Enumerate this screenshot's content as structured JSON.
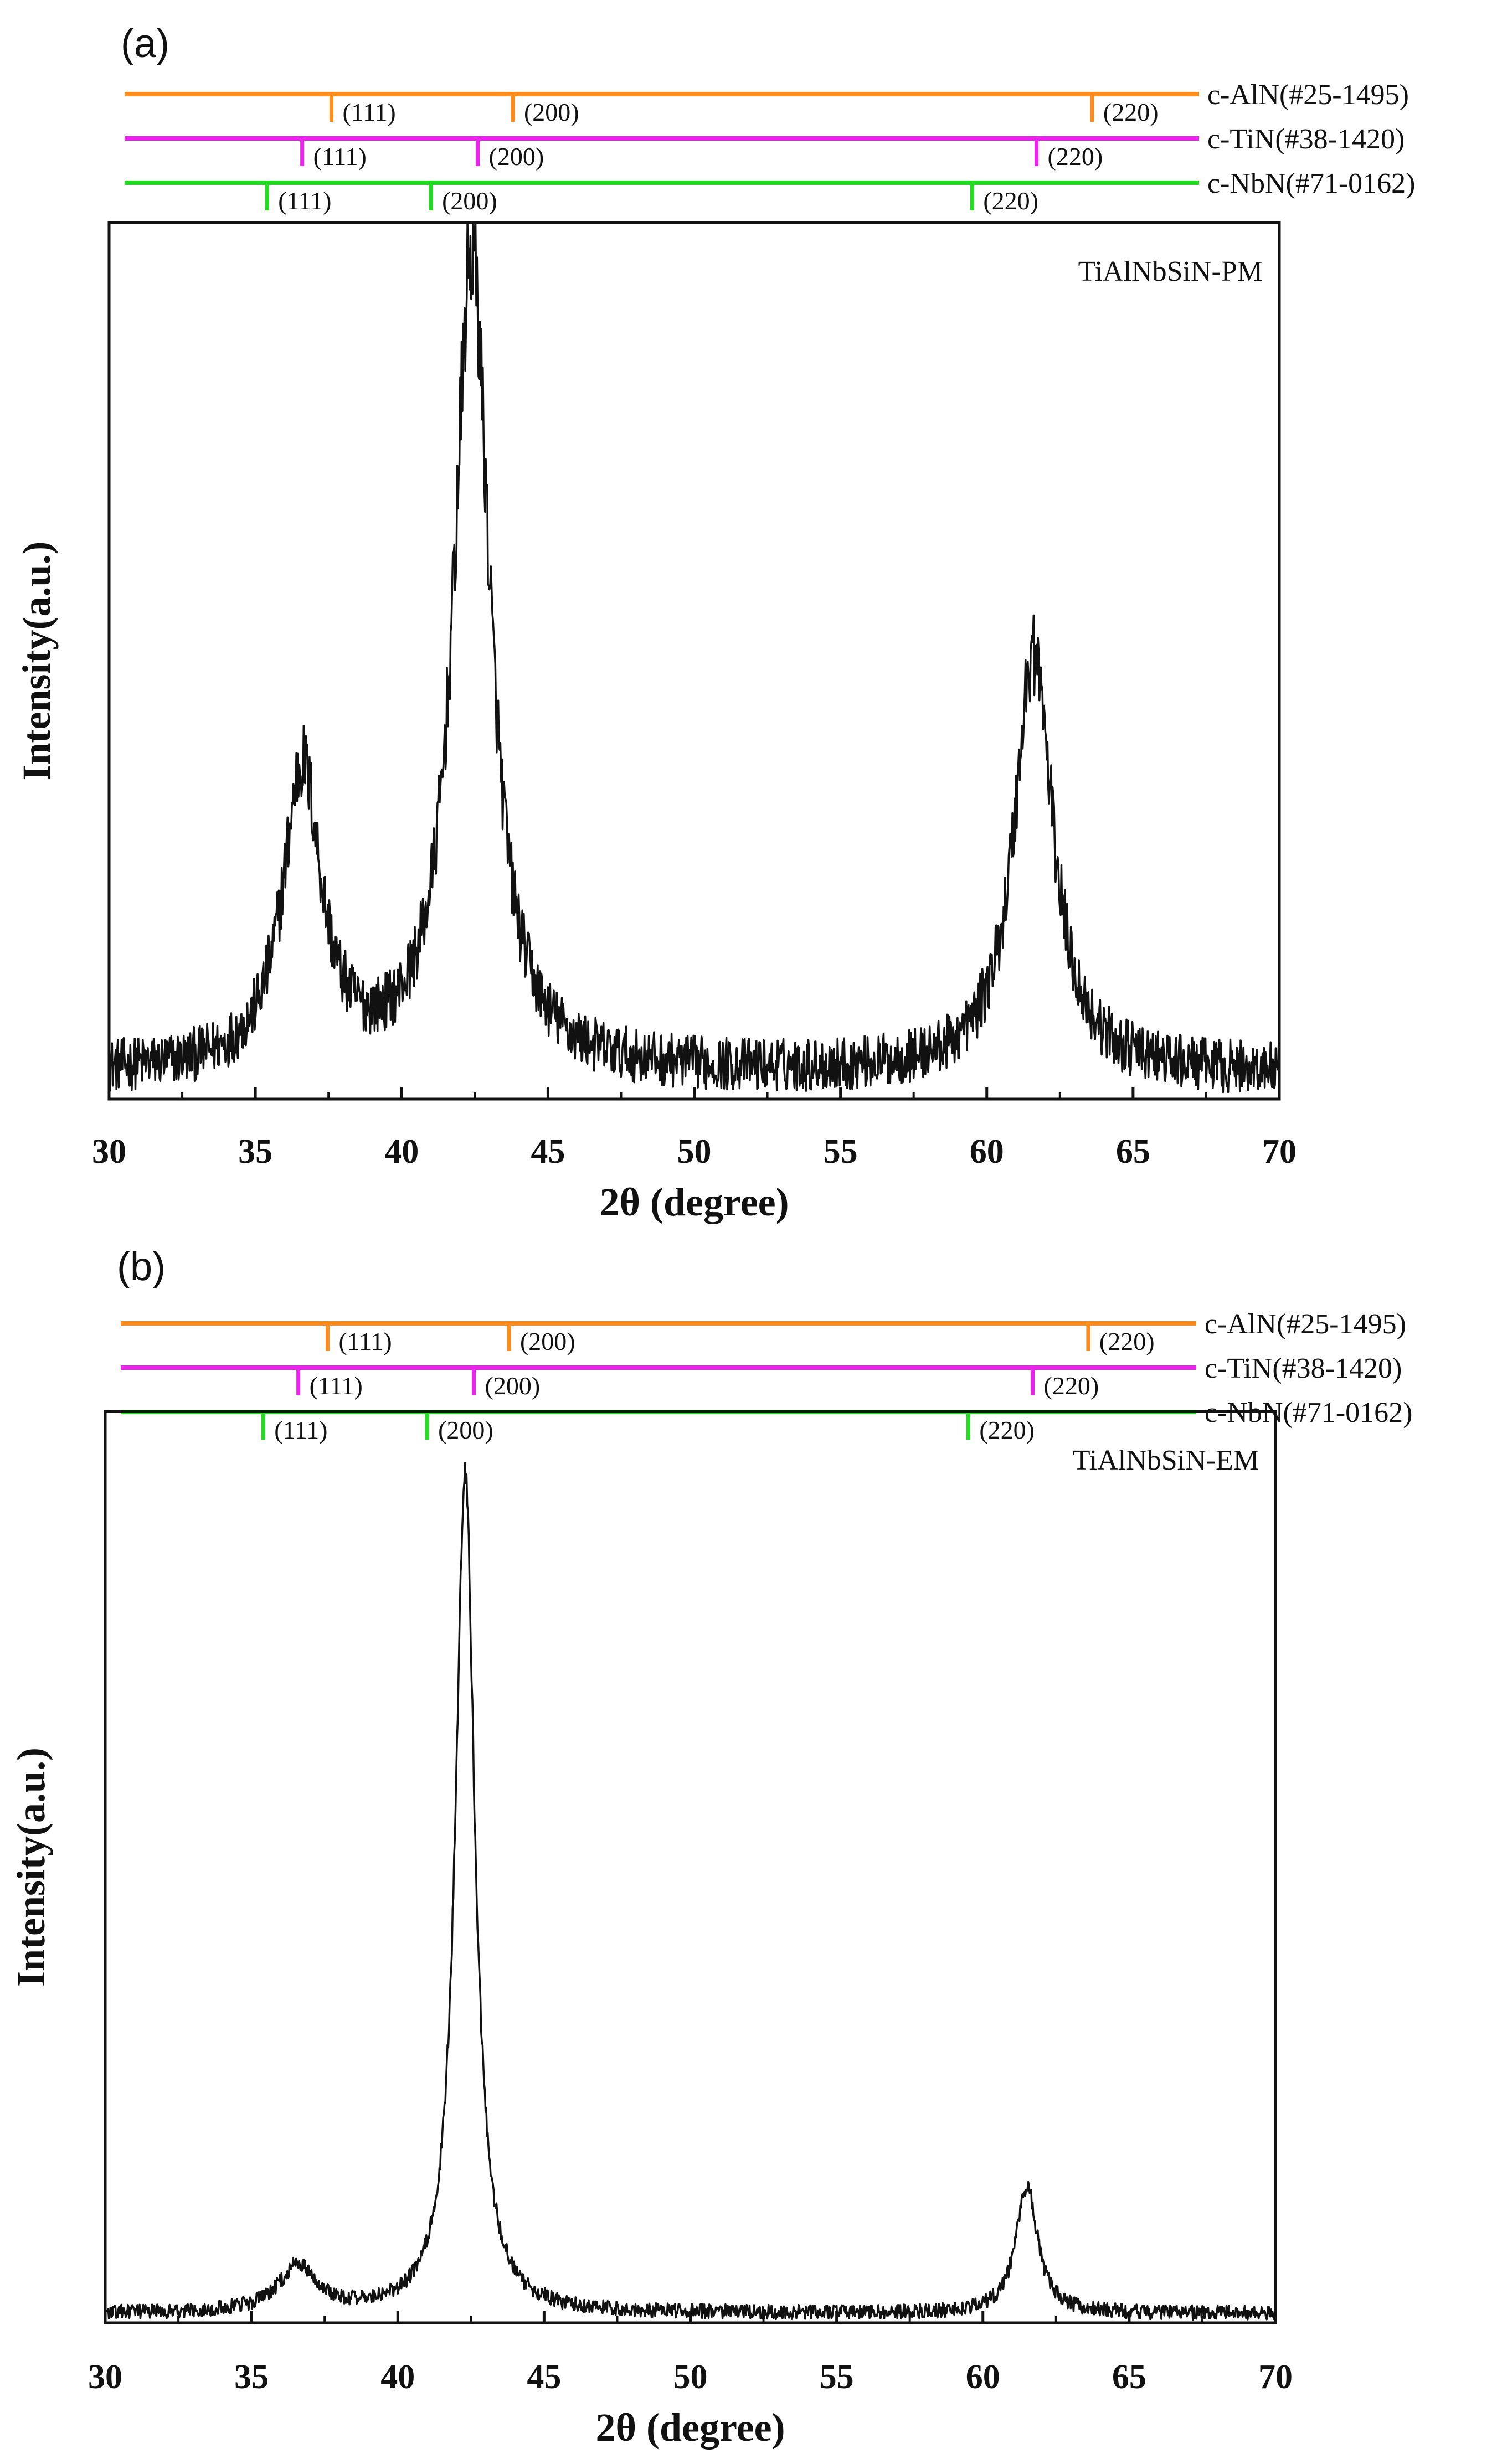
{
  "chart_data": [
    {
      "type": "line",
      "panel_label": "(a)",
      "sample_label": "TiAlNbSiN-PM",
      "xlabel": "2θ (degree)",
      "ylabel": "Intensity(a.u.)",
      "xlim": [
        30,
        70
      ],
      "ylim": [
        0,
        100
      ],
      "xticks": [
        "30",
        "35",
        "40",
        "45",
        "50",
        "55",
        "60",
        "65",
        "70"
      ],
      "grid": false,
      "reference_patterns": [
        {
          "name": "c-AlN(#25-1495)",
          "color": "#ff8c1a",
          "peaks": [
            {
              "x": 37.6,
              "hkl": "(111)"
            },
            {
              "x": 43.8,
              "hkl": "(200)"
            },
            {
              "x": 63.6,
              "hkl": "(220)"
            }
          ]
        },
        {
          "name": "c-TiN(#38-1420)",
          "color": "#ee22ee",
          "peaks": [
            {
              "x": 36.6,
              "hkl": "(111)"
            },
            {
              "x": 42.6,
              "hkl": "(200)"
            },
            {
              "x": 61.7,
              "hkl": "(220)"
            }
          ]
        },
        {
          "name": "c-NbN(#71-0162)",
          "color": "#22dd22",
          "peaks": [
            {
              "x": 35.4,
              "hkl": "(111)"
            },
            {
              "x": 41.0,
              "hkl": "(200)"
            },
            {
              "x": 59.5,
              "hkl": "(220)"
            }
          ]
        }
      ],
      "series": [
        {
          "peaks": [
            {
              "center": 36.6,
              "height": 34,
              "width": 0.8
            },
            {
              "center": 42.4,
              "height": 93,
              "width": 0.75
            },
            {
              "center": 61.6,
              "height": 48,
              "width": 0.8
            }
          ],
          "baseline": 3,
          "noise": 3
        }
      ]
    },
    {
      "type": "line",
      "panel_label": "(b)",
      "sample_label": "TiAlNbSiN-EM",
      "xlabel": "2θ (degree)",
      "ylabel": "Intensity(a.u.)",
      "xlim": [
        30,
        70
      ],
      "ylim": [
        0,
        100
      ],
      "xticks": [
        "30",
        "35",
        "40",
        "45",
        "50",
        "55",
        "60",
        "65",
        "70"
      ],
      "grid": false,
      "reference_patterns": [
        {
          "name": "c-AlN(#25-1495)",
          "color": "#ff8c1a",
          "peaks": [
            {
              "x": 37.6,
              "hkl": "(111)"
            },
            {
              "x": 43.8,
              "hkl": "(200)"
            },
            {
              "x": 63.6,
              "hkl": "(220)"
            }
          ]
        },
        {
          "name": "c-TiN(#38-1420)",
          "color": "#ee22ee",
          "peaks": [
            {
              "x": 36.6,
              "hkl": "(111)"
            },
            {
              "x": 42.6,
              "hkl": "(200)"
            },
            {
              "x": 61.7,
              "hkl": "(220)"
            }
          ]
        },
        {
          "name": "c-NbN(#71-0162)",
          "color": "#22dd22",
          "peaks": [
            {
              "x": 35.4,
              "hkl": "(111)"
            },
            {
              "x": 41.0,
              "hkl": "(200)"
            },
            {
              "x": 59.5,
              "hkl": "(220)"
            }
          ]
        }
      ],
      "series": [
        {
          "peaks": [
            {
              "center": 36.6,
              "height": 5,
              "width": 0.8
            },
            {
              "center": 42.3,
              "height": 92,
              "width": 0.4
            },
            {
              "center": 61.5,
              "height": 14,
              "width": 0.45
            }
          ],
          "baseline": 1,
          "noise": 0.8
        }
      ]
    }
  ]
}
